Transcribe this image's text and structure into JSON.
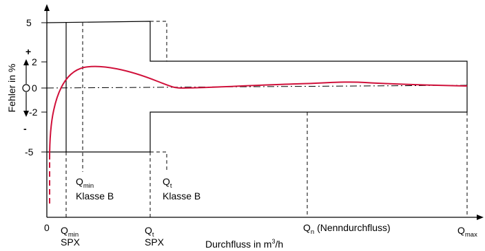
{
  "axes": {
    "y_label": "Fehler in %",
    "x_label_prefix": "Durchfluss in m",
    "x_label_sup": "3",
    "x_label_suffix": "/h",
    "y_ticks": [
      "5",
      "2",
      "0",
      "-2",
      "-5"
    ],
    "plus_sign": "+",
    "minus_sign": "-",
    "origin": "0"
  },
  "markers": {
    "qmin_spx": {
      "q": "Q",
      "sub": "min",
      "line2": "SPX"
    },
    "qt_spx": {
      "q": "Q",
      "sub": "t",
      "line2": "SPX"
    },
    "qn": {
      "q": "Q",
      "sub": "n",
      "text": " (Nenndurchfluss)"
    },
    "qmax": {
      "q": "Q",
      "sub": "max"
    },
    "qmin_b": {
      "q": "Q",
      "sub": "min",
      "line2": "Klasse B"
    },
    "qt_b": {
      "q": "Q",
      "sub": "t",
      "line2": "Klasse B"
    }
  },
  "colors": {
    "curve": "#d0103a",
    "lines": "#000000"
  }
}
